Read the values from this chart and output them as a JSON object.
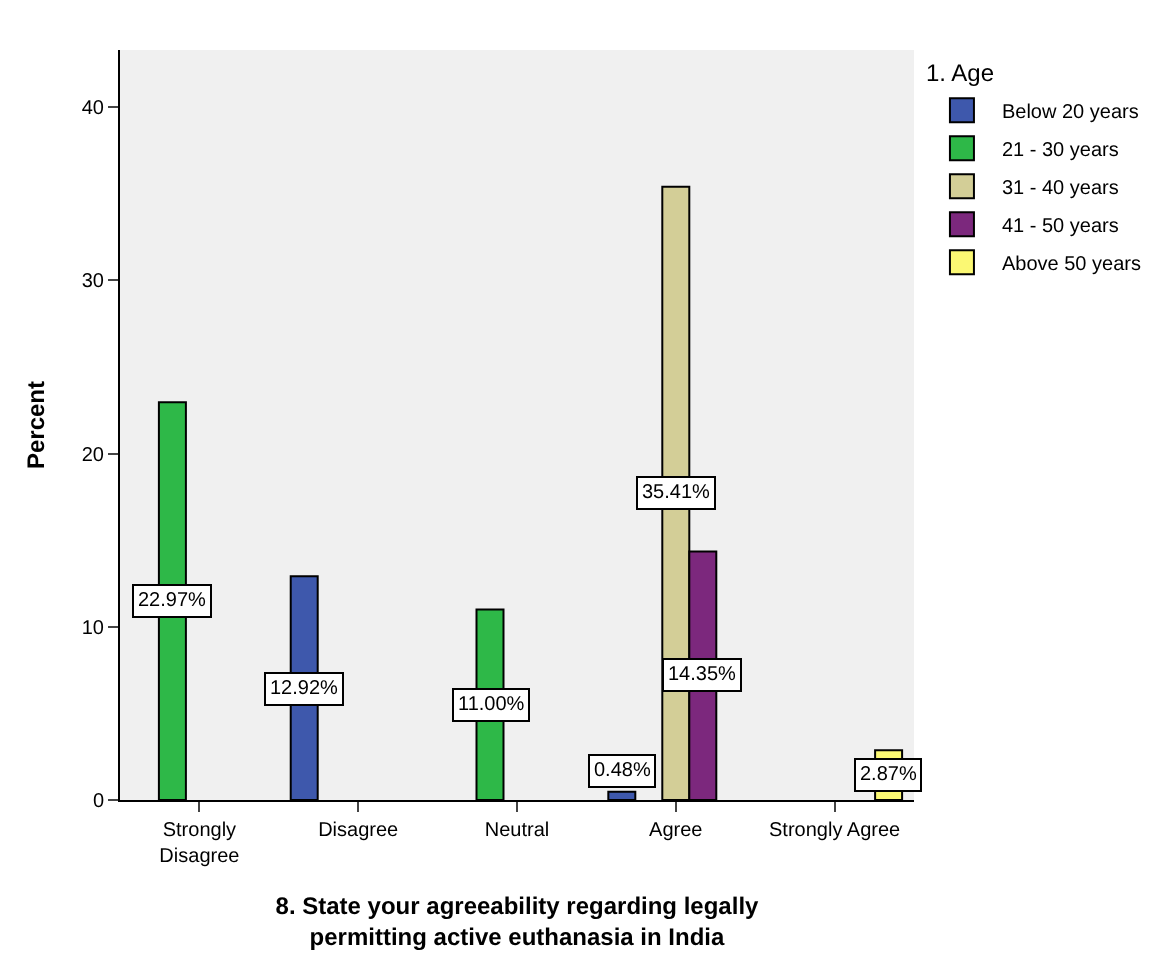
{
  "chart_data": {
    "type": "bar",
    "xlabel": "8. State your agreeability regarding legally\npermitting active euthanasia in India",
    "ylabel": "Percent",
    "legend_title": "1. Age",
    "categories": [
      "Strongly\nDisagree",
      "Disagree",
      "Neutral",
      "Agree",
      "Strongly Agree"
    ],
    "series": [
      {
        "name": "Below 20 years",
        "color": "#3e58ac",
        "values": [
          null,
          12.92,
          null,
          0.48,
          null
        ],
        "value_labels": [
          null,
          "12.92%",
          null,
          "0.48%",
          null
        ]
      },
      {
        "name": "21 - 30 years",
        "color": "#2eb848",
        "values": [
          22.97,
          null,
          11.0,
          null,
          null
        ],
        "value_labels": [
          "22.97%",
          null,
          "11.00%",
          null,
          null
        ]
      },
      {
        "name": "31 - 40 years",
        "color": "#d3ce97",
        "values": [
          null,
          null,
          null,
          35.41,
          null
        ],
        "value_labels": [
          null,
          null,
          null,
          "35.41%",
          null
        ]
      },
      {
        "name": "41 - 50 years",
        "color": "#7c287d",
        "values": [
          null,
          null,
          null,
          14.35,
          null
        ],
        "value_labels": [
          null,
          null,
          null,
          "14.35%",
          null
        ]
      },
      {
        "name": "Above 50 years",
        "color": "#fbf873",
        "values": [
          null,
          null,
          null,
          null,
          2.87
        ],
        "value_labels": [
          null,
          null,
          null,
          null,
          "2.87%"
        ]
      }
    ],
    "ylim": [
      0,
      43.3
    ],
    "yticks": [
      0,
      10,
      20,
      30,
      40
    ],
    "grid": false,
    "legend": "top right"
  }
}
